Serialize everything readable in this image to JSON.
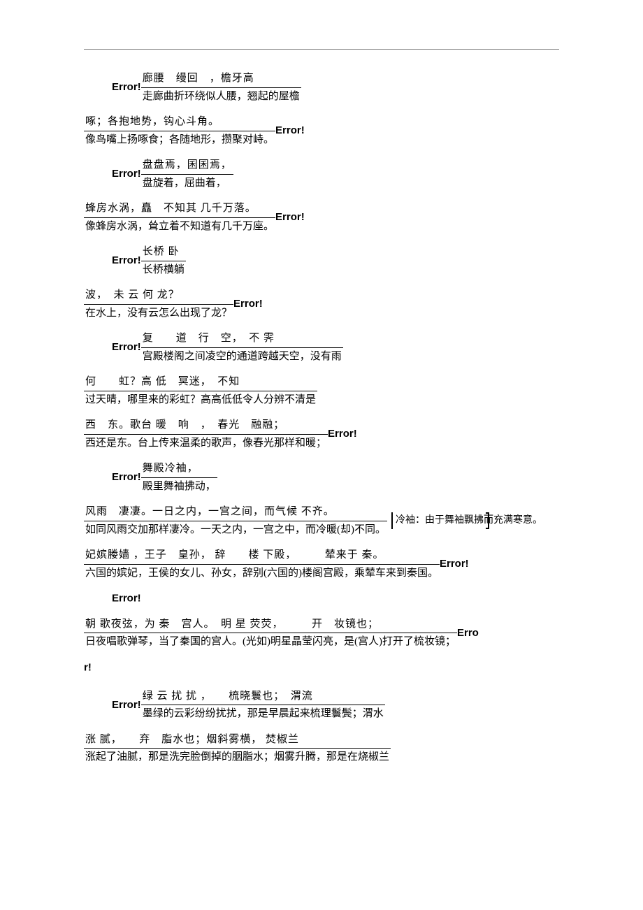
{
  "error_label": "Error!",
  "error_label_split_a": "Erro",
  "error_label_split_b": "r!",
  "blocks": [
    {
      "type": "err-frac",
      "num": "廊腰　缦回　，檐牙高",
      "den": "走廊曲折环绕似人腰，翘起的屋檐"
    },
    {
      "type": "frac-err",
      "num": "啄；各抱地势，钩心斗角。",
      "den": "像鸟嘴上扬啄食；各随地形，攒聚对峙。"
    },
    {
      "type": "err-frac",
      "num": "盘盘焉，囷囷焉，",
      "den": "盘旋着，屈曲着，"
    },
    {
      "type": "frac-err",
      "num": "蜂房水涡，矗　不知其 几千万落。",
      "den": "像蜂房水涡，耸立着不知道有几千万座。"
    },
    {
      "type": "err-frac",
      "num": "长桥 卧",
      "den": "长桥横躺"
    },
    {
      "type": "frac-err",
      "num": "波，　未 云 何 龙？",
      "den": "在水上，没有云怎么出现了龙？"
    },
    {
      "type": "err-frac",
      "num": "复　　道　行　空，　不 霁",
      "den": "宫殿楼阁之间凌空的通道跨越天空，没有雨"
    },
    {
      "type": "frac-only",
      "num": "何　　虹？高 低　冥迷，　不知",
      "den": "过天晴，哪里来的彩虹？高高低低令人分辨不清是"
    },
    {
      "type": "frac-err",
      "num": "西　东。歌台 暖　响　，　春光　融融；",
      "den": "西还是东。台上传来温柔的歌声，像春光那样和暖；"
    },
    {
      "type": "err-frac",
      "num": "舞殿冷袖，",
      "den": "殿里舞袖拂动，"
    },
    {
      "type": "frac-note",
      "num": "风雨　凄凄。一日之内，一宫之间，而气候 不齐。",
      "den": "如同风雨交加那样凄冷。一天之内，一宫之中，而冷暖(却)不同。",
      "note": "冷袖：由于舞袖飘拂而充满寒意。"
    },
    {
      "type": "frac-err",
      "num": "妃嫔媵嫱 ，王子　皇孙，  辞　　楼 下殿，　　　辇来于 秦。",
      "den": "六国的嫔妃，王侯的女儿、孙女，辞别(六国的)楼阁宫殿，乘辇车来到秦国。"
    },
    {
      "type": "err-solo"
    },
    {
      "type": "frac-err-split",
      "num": "朝 歌夜弦，为 秦　宫人。　明 星 荧荧，　　　开　妆镜也；",
      "den": "日夜唱歌弹琴，当了秦国的宫人。(光如)明星晶莹闪亮，是(宫人)打开了梳妆镜；"
    },
    {
      "type": "err-split-b"
    },
    {
      "type": "err-frac",
      "num": "绿 云 扰 扰 ，　　梳晓鬟也；　渭流",
      "den": "墨绿的云彩纷纷扰扰，那是早晨起来梳理鬟鬓；渭水"
    },
    {
      "type": "frac-only",
      "num": "涨 腻，　　弃　脂水也；烟斜雾横，  焚椒兰",
      "den": "涨起了油腻，那是洗完脸倒掉的胭脂水；烟雾升腾，那是在烧椒兰"
    }
  ]
}
